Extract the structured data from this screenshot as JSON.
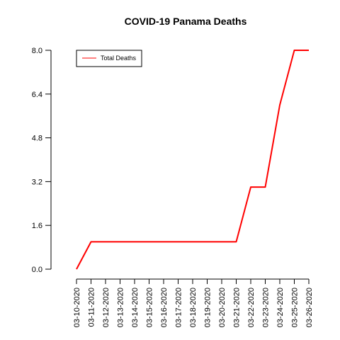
{
  "chart_data": {
    "type": "line",
    "title": "COVID-19 Panama Deaths",
    "xlabel": "",
    "ylabel": "",
    "x": [
      "03-10-2020",
      "03-11-2020",
      "03-12-2020",
      "03-13-2020",
      "03-14-2020",
      "03-15-2020",
      "03-16-2020",
      "03-17-2020",
      "03-18-2020",
      "03-19-2020",
      "03-20-2020",
      "03-21-2020",
      "03-22-2020",
      "03-23-2020",
      "03-24-2020",
      "03-25-2020",
      "03-26-2020"
    ],
    "series": [
      {
        "name": "Total Deaths",
        "values": [
          0,
          1,
          1,
          1,
          1,
          1,
          1,
          1,
          1,
          1,
          1,
          1,
          3,
          3,
          6,
          8,
          8
        ],
        "color": "#ff0000"
      }
    ],
    "ylim": [
      0,
      8
    ],
    "yticks": [
      "0.0",
      "1.6",
      "3.2",
      "4.8",
      "6.4",
      "8.0"
    ],
    "legend_position": "top-left",
    "grid": false
  }
}
